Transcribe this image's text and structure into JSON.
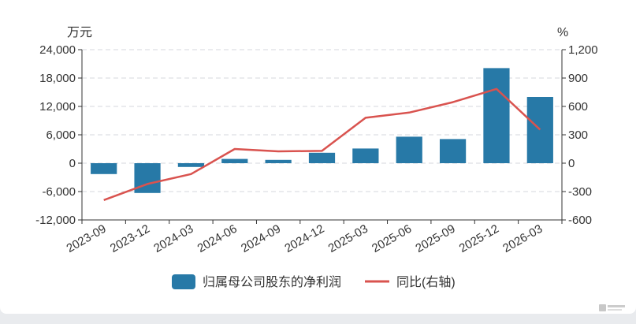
{
  "chart_data": {
    "type": "bar",
    "categories": [
      "2023-09",
      "2023-12",
      "2024-03",
      "2024-06",
      "2024-09",
      "2024-12",
      "2025-03",
      "2025-06",
      "2025-09",
      "2025-12",
      "2026-03"
    ],
    "series": [
      {
        "name": "归属母公司股东的净利润",
        "type": "bar",
        "axis": "left",
        "color": "#2779a7",
        "values": [
          -2300,
          -6300,
          -800,
          900,
          700,
          2200,
          3100,
          5600,
          5100,
          20100,
          14000
        ]
      },
      {
        "name": "同比(右轴)",
        "type": "line",
        "axis": "right",
        "color": "#d9534f",
        "values": [
          -390,
          -220,
          -115,
          150,
          125,
          130,
          480,
          535,
          645,
          785,
          355
        ]
      }
    ],
    "left_axis": {
      "unit": "万元",
      "ylim": [
        -12000,
        24000
      ],
      "ticks": [
        "24,000",
        "18,000",
        "12,000",
        "6,000",
        "0",
        "-6,000",
        "-12,000"
      ]
    },
    "right_axis": {
      "unit": "%",
      "ylim": [
        -600,
        1200
      ],
      "ticks": [
        "1,200",
        "900",
        "600",
        "300",
        "0",
        "-300",
        "-600"
      ]
    },
    "grid": true,
    "legend_position": "bottom"
  }
}
